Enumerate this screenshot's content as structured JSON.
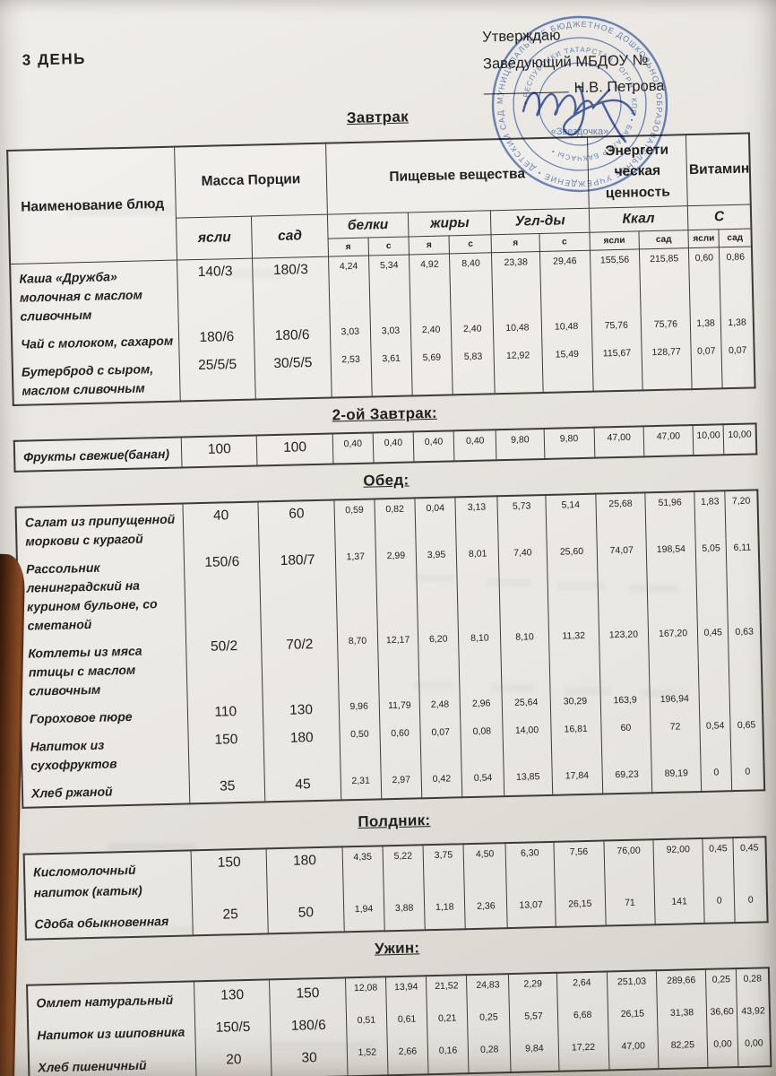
{
  "page": {
    "day_title": "3  ДЕНЬ",
    "approve": {
      "line1": "Утверждаю",
      "line2": "Заведующий МБДОУ №",
      "line3": "Н.В. Петрова"
    },
    "stamp": {
      "outer_ring_text": "МУНИЦИПАЛЬНОЕ БЮДЖЕТНОЕ ДОШКОЛЬНОЕ ОБРАЗОВАТЕЛЬНОЕ УЧРЕЖДЕНИЕ • ДЕТСКИЙ САД КОМБИНИРОВАННОГО ВИДА •",
      "inner_ring_text": "• РЕСПУБЛИКИ ТАТАРСТАН • ОГРН • КПП • БАЛАЛАР БАКЧАСЫ •",
      "center_text": "«Звездочка»",
      "color": "#4e73b9"
    }
  },
  "colors": {
    "paper": "#e9e6e1",
    "table_border": "#3c3b38",
    "ink": "#222120",
    "stamp_blue": "#4e73b9"
  },
  "table_header": {
    "name": "Наименование блюд",
    "mass": "Масса Порции",
    "nutrients": "Пищевые вещества",
    "energy": "Энергети ческая ценность",
    "vitamin": "Витамин",
    "yasli": "ясли",
    "sad": "сад",
    "belki": "белки",
    "zhiry": "жиры",
    "ugl": "Угл-ды",
    "kkal": "Ккал",
    "c": "С",
    "ya": "я",
    "s": "с"
  },
  "sections": [
    {
      "id": "breakfast",
      "title": "Завтрак",
      "rows": [
        [
          "Каша «Дружба» молочная с маслом сливочным",
          "140/3",
          "180/3",
          "4,24",
          "5,34",
          "4,92",
          "8,40",
          "23,38",
          "29,46",
          "155,56",
          "215,85",
          "0,60",
          "0,86"
        ],
        [
          "Чай с молоком, сахаром",
          "180/6",
          "180/6",
          "3,03",
          "3,03",
          "2,40",
          "2,40",
          "10,48",
          "10,48",
          "75,76",
          "75,76",
          "1,38",
          "1,38"
        ],
        [
          "Бутерброд с сыром, маслом сливочным",
          "25/5/5",
          "30/5/5",
          "2,53",
          "3,61",
          "5,69",
          "5,83",
          "12,92",
          "15,49",
          "115,67",
          "128,77",
          "0,07",
          "0,07"
        ]
      ]
    },
    {
      "id": "second-breakfast",
      "title": "2-ой Завтрак:",
      "rows": [
        [
          "Фрукты свежие(банан)",
          "100",
          "100",
          "0,40",
          "0,40",
          "0,40",
          "0,40",
          "9,80",
          "9,80",
          "47,00",
          "47,00",
          "10,00",
          "10,00"
        ]
      ]
    },
    {
      "id": "lunch",
      "title": "Обед:",
      "rows": [
        [
          "Салат из припущенной моркови с курагой",
          "40",
          "60",
          "0,59",
          "0,82",
          "0,04",
          "3,13",
          "5,73",
          "5,14",
          "25,68",
          "51,96",
          "1,83",
          "7,20"
        ],
        [
          "Рассольник ленинградский на курином бульоне, со сметаной",
          "150/6",
          "180/7",
          "1,37",
          "2,99",
          "3,95",
          "8,01",
          "7,40",
          "25,60",
          "74,07",
          "198,54",
          "5,05",
          "6,11"
        ],
        [
          "Котлеты из мяса птицы с маслом сливочным",
          "50/2",
          "70/2",
          "8,70",
          "12,17",
          "6,20",
          "8,10",
          "8,10",
          "11,32",
          "123,20",
          "167,20",
          "0,45",
          "0,63"
        ],
        [
          "Гороховое пюре",
          "110",
          "130",
          "9,96",
          "11,79",
          "2,48",
          "2,96",
          "25,64",
          "30,29",
          "163,9",
          "196,94",
          "",
          ""
        ],
        [
          "Напиток из сухофруктов",
          "150",
          "180",
          "0,50",
          "0,60",
          "0,07",
          "0,08",
          "14,00",
          "16,81",
          "60",
          "72",
          "0,54",
          "0,65"
        ],
        [
          "Хлеб ржаной",
          "35",
          "45",
          "2,31",
          "2,97",
          "0,42",
          "0,54",
          "13,85",
          "17,84",
          "69,23",
          "89,19",
          "0",
          "0"
        ]
      ]
    },
    {
      "id": "poldnik",
      "title": "Полдник:",
      "rows": [
        [
          "Кисломолочный напиток (катык)",
          "150",
          "180",
          "4,35",
          "5,22",
          "3,75",
          "4,50",
          "6,30",
          "7,56",
          "76,00",
          "92,00",
          "0,45",
          "0,45"
        ],
        [
          "Сдоба обыкновенная",
          "25",
          "50",
          "1,94",
          "3,88",
          "1,18",
          "2,36",
          "13,07",
          "26,15",
          "71",
          "141",
          "0",
          "0"
        ]
      ]
    },
    {
      "id": "dinner",
      "title": "Ужин:",
      "rows": [
        [
          "Омлет натуральный",
          "130",
          "150",
          "12,08",
          "13,94",
          "21,52",
          "24,83",
          "2,29",
          "2,64",
          "251,03",
          "289,66",
          "0,25",
          "0,28"
        ],
        [
          "Напиток из шиповника",
          "150/5",
          "180/6",
          "0,51",
          "0,61",
          "0,21",
          "0,25",
          "5,57",
          "6,68",
          "26,15",
          "31,38",
          "36,60",
          "43,92"
        ],
        [
          "Хлеб пшеничный",
          "20",
          "30",
          "1,52",
          "2,66",
          "0,16",
          "0,28",
          "9,84",
          "17,22",
          "47,00",
          "82,25",
          "0,00",
          "0,00"
        ]
      ]
    }
  ]
}
